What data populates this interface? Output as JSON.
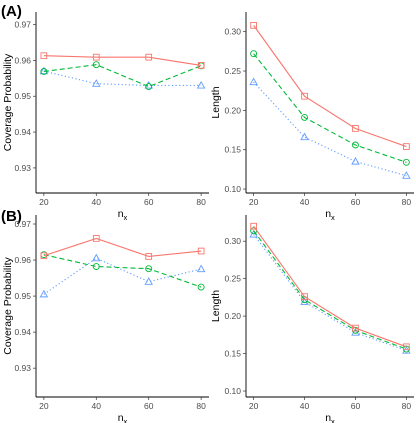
{
  "panel_labels": [
    "(A)",
    "(B)"
  ],
  "colors": {
    "red": "#F8766D",
    "green": "#00BA38",
    "blue": "#619CFF"
  },
  "chart_data": [
    {
      "type": "line",
      "row_label": "(A)",
      "xlabel": "n",
      "xlabel_sub": "x",
      "ylabel": "Coverage Probability",
      "x": [
        20,
        40,
        60,
        80
      ],
      "xlim": [
        17,
        83
      ],
      "xticks": [
        "20",
        "40",
        "60",
        "80"
      ],
      "ylim": [
        0.923,
        0.9735
      ],
      "yticks": [
        0.93,
        0.94,
        0.95,
        0.96,
        0.97
      ],
      "ytick_labels": [
        "0.93",
        "0.94",
        "0.95",
        "0.96",
        "0.97"
      ],
      "grid": false,
      "legend": "none",
      "series": [
        {
          "color": "red",
          "marker": "square",
          "dash": "solid",
          "values": [
            0.9613,
            0.9609,
            0.9609,
            0.9586
          ]
        },
        {
          "color": "green",
          "marker": "circle",
          "dash": "dashed",
          "values": [
            0.9569,
            0.9588,
            0.9527,
            0.9585
          ]
        },
        {
          "color": "blue",
          "marker": "triangle",
          "dash": "dotted",
          "values": [
            0.957,
            0.9535,
            0.953,
            0.953
          ]
        }
      ]
    },
    {
      "type": "line",
      "row_label": "(A)",
      "xlabel": "n",
      "xlabel_sub": "x",
      "ylabel": "Length",
      "x": [
        20,
        40,
        60,
        80
      ],
      "xlim": [
        17,
        83
      ],
      "xticks": [
        "20",
        "40",
        "60",
        "80"
      ],
      "ylim": [
        0.095,
        0.325
      ],
      "yticks": [
        0.1,
        0.15,
        0.2,
        0.25,
        0.3
      ],
      "ytick_labels": [
        "0.10",
        "0.15",
        "0.20",
        "0.25",
        "0.30"
      ],
      "grid": false,
      "legend": "none",
      "series": [
        {
          "color": "red",
          "marker": "square",
          "dash": "solid",
          "values": [
            0.308,
            0.218,
            0.177,
            0.154
          ]
        },
        {
          "color": "green",
          "marker": "circle",
          "dash": "dashed",
          "values": [
            0.272,
            0.191,
            0.156,
            0.134
          ]
        },
        {
          "color": "blue",
          "marker": "triangle",
          "dash": "dotted",
          "values": [
            0.236,
            0.166,
            0.135,
            0.117
          ]
        }
      ]
    },
    {
      "type": "line",
      "row_label": "(B)",
      "xlabel": "n",
      "xlabel_sub": "x",
      "ylabel": "Coverage Probability",
      "x": [
        20,
        40,
        60,
        80
      ],
      "xlim": [
        17,
        83
      ],
      "xticks": [
        "20",
        "40",
        "60",
        "80"
      ],
      "ylim": [
        0.922,
        0.9725
      ],
      "yticks": [
        0.93,
        0.94,
        0.95,
        0.96,
        0.97
      ],
      "ytick_labels": [
        "0.93",
        "0.94",
        "0.95",
        "0.96",
        "0.97"
      ],
      "grid": false,
      "legend": "none",
      "series": [
        {
          "color": "red",
          "marker": "square",
          "dash": "solid",
          "values": [
            0.9612,
            0.966,
            0.961,
            0.9625
          ]
        },
        {
          "color": "green",
          "marker": "circle",
          "dash": "dashed",
          "values": [
            0.9615,
            0.9582,
            0.9576,
            0.9525
          ]
        },
        {
          "color": "blue",
          "marker": "triangle",
          "dash": "dotted",
          "values": [
            0.9505,
            0.9605,
            0.954,
            0.9575
          ]
        }
      ]
    },
    {
      "type": "line",
      "row_label": "(B)",
      "xlabel": "n",
      "xlabel_sub": "x",
      "ylabel": "Length",
      "x": [
        20,
        40,
        60,
        80
      ],
      "xlim": [
        17,
        83
      ],
      "xticks": [
        "20",
        "40",
        "60",
        "80"
      ],
      "ylim": [
        0.092,
        0.335
      ],
      "yticks": [
        0.1,
        0.15,
        0.2,
        0.25,
        0.3
      ],
      "ytick_labels": [
        "0.10",
        "0.15",
        "0.20",
        "0.25",
        "0.30"
      ],
      "grid": false,
      "legend": "none",
      "series": [
        {
          "color": "red",
          "marker": "square",
          "dash": "solid",
          "values": [
            0.32,
            0.226,
            0.184,
            0.159
          ]
        },
        {
          "color": "green",
          "marker": "circle",
          "dash": "dashed",
          "values": [
            0.314,
            0.222,
            0.181,
            0.156
          ]
        },
        {
          "color": "blue",
          "marker": "triangle",
          "dash": "dotted",
          "values": [
            0.309,
            0.219,
            0.178,
            0.154
          ]
        }
      ]
    }
  ]
}
